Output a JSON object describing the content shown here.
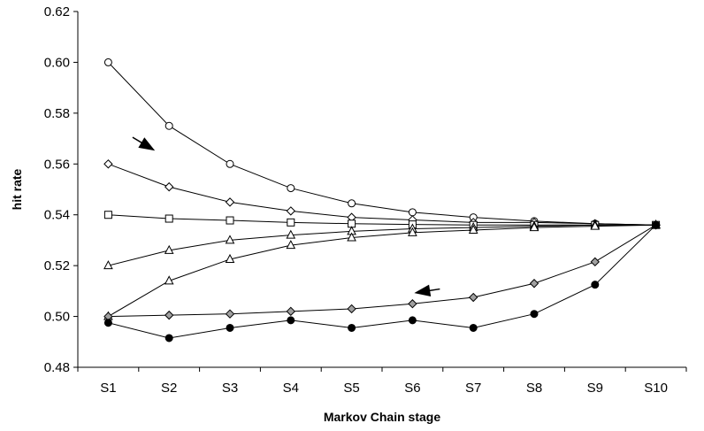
{
  "chart_data": {
    "type": "line",
    "xlabel": "Markov Chain stage",
    "ylabel": "hit rate",
    "categories": [
      "S1",
      "S2",
      "S3",
      "S4",
      "S5",
      "S6",
      "S7",
      "S8",
      "S9",
      "S10"
    ],
    "ylim": [
      0.48,
      0.62
    ],
    "yticks": [
      0.48,
      0.5,
      0.52,
      0.54,
      0.56,
      0.58,
      0.6,
      0.62
    ],
    "ytick_labels": [
      "0.48",
      "0.50",
      "0.52",
      "0.54",
      "0.56",
      "0.58",
      "0.60",
      "0.62"
    ],
    "grid": false,
    "legend": "none",
    "series": [
      {
        "marker": "circle-open",
        "color": "#000000",
        "fill": "#ffffff",
        "values": [
          0.6,
          0.575,
          0.56,
          0.5505,
          0.5445,
          0.541,
          0.539,
          0.5375,
          0.5365,
          0.536
        ]
      },
      {
        "marker": "diamond-open",
        "color": "#000000",
        "fill": "#ffffff",
        "values": [
          0.56,
          0.551,
          0.545,
          0.5415,
          0.539,
          0.538,
          0.537,
          0.537,
          0.5365,
          0.536
        ]
      },
      {
        "marker": "square-open",
        "color": "#000000",
        "fill": "#ffffff",
        "values": [
          0.54,
          0.5385,
          0.5378,
          0.537,
          0.5365,
          0.5362,
          0.536,
          0.536,
          0.536,
          0.536
        ]
      },
      {
        "marker": "triangle-open",
        "color": "#000000",
        "fill": "#ffffff",
        "values": [
          0.52,
          0.526,
          0.53,
          0.532,
          0.5335,
          0.5345,
          0.535,
          0.5355,
          0.536,
          0.536
        ]
      },
      {
        "marker": "triangle-open",
        "color": "#000000",
        "fill": "#ffffff",
        "values": [
          0.5,
          0.514,
          0.5225,
          0.528,
          0.531,
          0.533,
          0.534,
          0.535,
          0.5355,
          0.536
        ]
      },
      {
        "marker": "diamond-filled",
        "color": "#000000",
        "fill": "#a0a0a0",
        "values": [
          0.5,
          0.5005,
          0.501,
          0.502,
          0.503,
          0.505,
          0.5075,
          0.513,
          0.5215,
          0.536
        ]
      },
      {
        "marker": "circle-filled",
        "color": "#000000",
        "fill": "#000000",
        "values": [
          0.4975,
          0.4915,
          0.4955,
          0.4985,
          0.4955,
          0.4985,
          0.4955,
          0.501,
          0.5125,
          0.536
        ]
      }
    ],
    "annotations": [
      {
        "type": "arrow",
        "from": [
          1.4,
          0.5705
        ],
        "to": [
          1.75,
          0.5655
        ]
      },
      {
        "type": "arrow",
        "from": [
          6.45,
          0.5108
        ],
        "to": [
          6.05,
          0.5093
        ]
      }
    ]
  }
}
